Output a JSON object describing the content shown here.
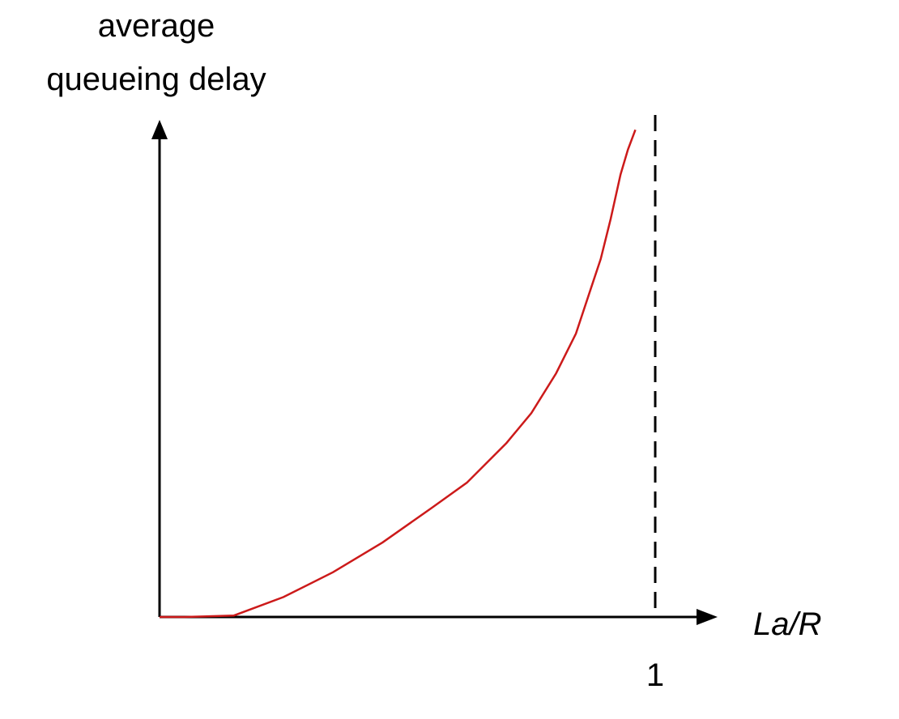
{
  "chart_data": {
    "type": "line",
    "title": "",
    "ylabel": [
      "average",
      "queueing delay"
    ],
    "xlabel": "La/R",
    "x_ticks": [
      {
        "value": 1,
        "label": "1"
      }
    ],
    "xlim": [
      0,
      1.05
    ],
    "ylim": [
      0,
      1
    ],
    "grid": false,
    "colors": {
      "curve": "#cc1a1a",
      "axes": "#000000",
      "asymptote": "#000000"
    },
    "asymptote": {
      "x": 1,
      "style": "dashed"
    },
    "series": [
      {
        "x": [
          0,
          0.05,
          0.15,
          0.25,
          0.35,
          0.45,
          0.55,
          0.62,
          0.7,
          0.75,
          0.8,
          0.84,
          0.87,
          0.89,
          0.91,
          0.93,
          0.945,
          0.96
        ],
        "y": [
          0,
          0,
          0.003,
          0.04,
          0.09,
          0.15,
          0.22,
          0.27,
          0.35,
          0.41,
          0.49,
          0.57,
          0.66,
          0.72,
          0.8,
          0.89,
          0.94,
          0.98
        ]
      }
    ]
  }
}
